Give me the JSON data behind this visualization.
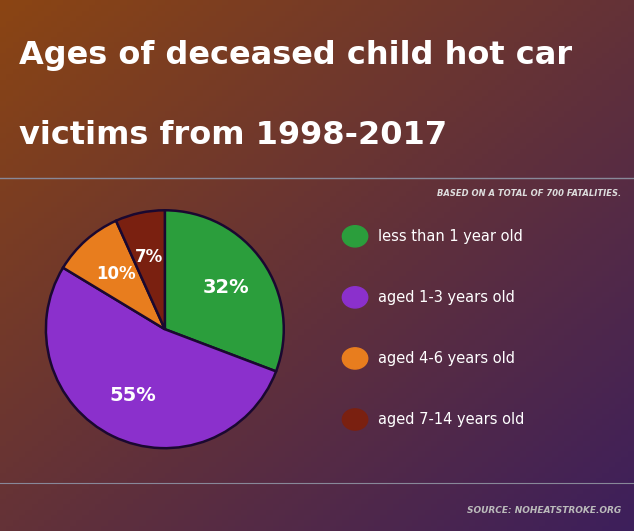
{
  "title_line1": "Ages of deceased child hot car",
  "title_line2": "victims from 1998-2017",
  "subtitle": "BASED ON A TOTAL OF 700 FATALITIES.",
  "source": "SOURCE: NOHEATSTROKE.ORG",
  "slices": [
    32,
    55,
    10,
    7
  ],
  "pct_labels": [
    "32%",
    "55%",
    "10%",
    "7%"
  ],
  "colors": [
    "#2b9e3c",
    "#8b30cc",
    "#e87d1e",
    "#7a2010"
  ],
  "legend_labels": [
    "less than 1 year old",
    "aged 1-3 years old",
    "aged 4-6 years old",
    "aged 7-14 years old"
  ],
  "legend_colors": [
    "#2b9e3c",
    "#8b30cc",
    "#e87d1e",
    "#7a2010"
  ],
  "text_color": "#ffffff",
  "subtitle_color": "#dddddd",
  "source_color": "#bbbbbb",
  "startangle": 90,
  "figsize": [
    6.34,
    5.31
  ],
  "dpi": 100
}
